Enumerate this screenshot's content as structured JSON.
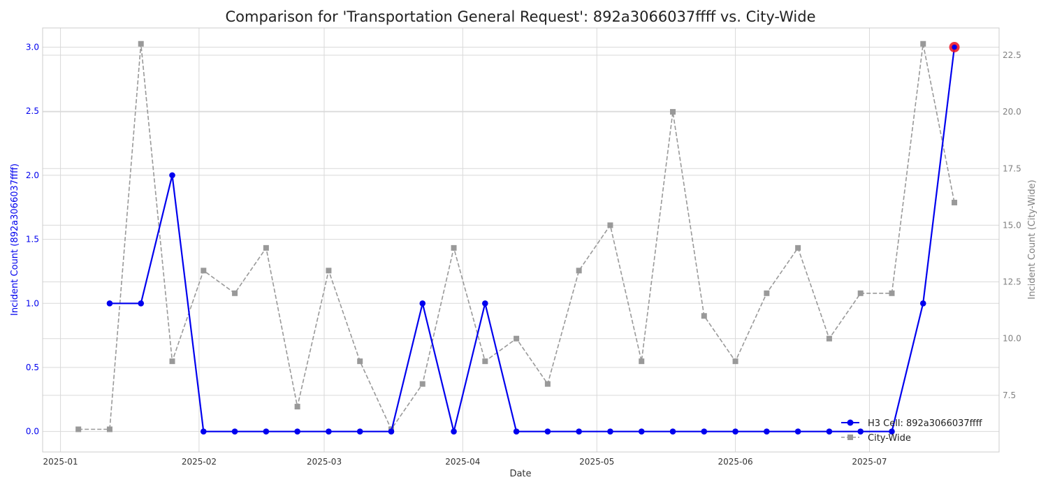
{
  "chart_data": {
    "type": "line",
    "title": "Comparison for 'Transportation General Request': 892a3066037ffff vs. City-Wide",
    "xlabel": "Date",
    "ylabel_left": "Incident Count (892a3066037ffff)",
    "ylabel_right": "Incident Count (City-Wide)",
    "x_range": [
      "2024-12-28",
      "2025-07-30"
    ],
    "x_ticks": [
      {
        "date": "2025-01-01",
        "label": "2025-01"
      },
      {
        "date": "2025-02-01",
        "label": "2025-02"
      },
      {
        "date": "2025-03-01",
        "label": "2025-03"
      },
      {
        "date": "2025-04-01",
        "label": "2025-04"
      },
      {
        "date": "2025-05-01",
        "label": "2025-05"
      },
      {
        "date": "2025-06-01",
        "label": "2025-06"
      },
      {
        "date": "2025-07-01",
        "label": "2025-07"
      }
    ],
    "ylim_left": [
      -0.16,
      3.15
    ],
    "ylim_right": [
      5.0,
      23.7
    ],
    "y_ticks_left": [
      "0.0",
      "0.5",
      "1.0",
      "1.5",
      "2.0",
      "2.5",
      "3.0"
    ],
    "y_ticks_right": [
      "7.5",
      "10.0",
      "12.5",
      "15.0",
      "17.5",
      "20.0",
      "22.5"
    ],
    "grid": true,
    "legend_position": "lower-right",
    "series": [
      {
        "name": "H3 Cell: 892a3066037ffff",
        "axis": "left",
        "color": "#0000ee",
        "style": "solid",
        "marker": "circle",
        "x": [
          "2025-01-12",
          "2025-01-19",
          "2025-01-26",
          "2025-02-02",
          "2025-02-09",
          "2025-02-16",
          "2025-02-23",
          "2025-03-02",
          "2025-03-09",
          "2025-03-16",
          "2025-03-23",
          "2025-03-30",
          "2025-04-06",
          "2025-04-13",
          "2025-04-20",
          "2025-04-27",
          "2025-05-04",
          "2025-05-11",
          "2025-05-18",
          "2025-05-25",
          "2025-06-01",
          "2025-06-08",
          "2025-06-15",
          "2025-06-22",
          "2025-06-29",
          "2025-07-06",
          "2025-07-13",
          "2025-07-20"
        ],
        "values": [
          1,
          1,
          2,
          0,
          0,
          0,
          0,
          0,
          0,
          0,
          1,
          0,
          1,
          0,
          0,
          0,
          0,
          0,
          0,
          0,
          0,
          0,
          0,
          0,
          0,
          0,
          1,
          3
        ]
      },
      {
        "name": "City-Wide",
        "axis": "right",
        "color": "#999999",
        "style": "dashed",
        "marker": "square",
        "x": [
          "2025-01-05",
          "2025-01-12",
          "2025-01-19",
          "2025-01-26",
          "2025-02-02",
          "2025-02-09",
          "2025-02-16",
          "2025-02-23",
          "2025-03-02",
          "2025-03-09",
          "2025-03-16",
          "2025-03-23",
          "2025-03-30",
          "2025-04-06",
          "2025-04-13",
          "2025-04-20",
          "2025-04-27",
          "2025-05-04",
          "2025-05-11",
          "2025-05-18",
          "2025-05-25",
          "2025-06-01",
          "2025-06-08",
          "2025-06-15",
          "2025-06-22",
          "2025-06-29",
          "2025-07-06",
          "2025-07-13",
          "2025-07-20"
        ],
        "values": [
          6,
          6,
          23,
          9,
          13,
          12,
          14,
          7,
          13,
          9,
          6,
          8,
          14,
          9,
          10,
          8,
          13,
          15,
          9,
          20,
          11,
          9,
          12,
          14,
          10,
          12,
          12,
          23,
          16
        ]
      }
    ],
    "highlight": {
      "series": 0,
      "x": "2025-07-20",
      "value": 3,
      "color": "#ee1122"
    }
  }
}
